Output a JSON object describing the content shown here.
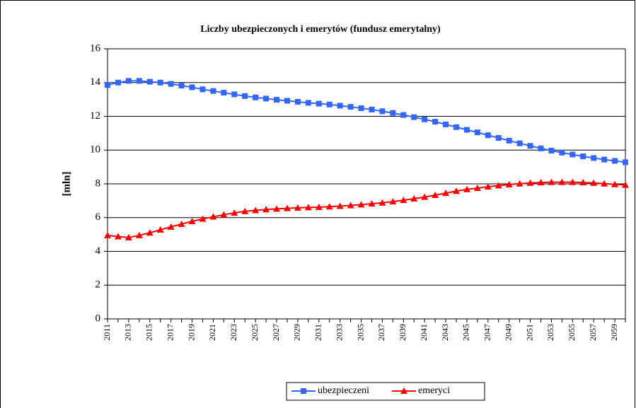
{
  "chart_data": {
    "type": "line",
    "title": "Liczby ubezpieczonych i emerytów (fundusz emerytalny)",
    "y_label": "[mln]",
    "categories": [
      "2011",
      null,
      "2013",
      null,
      "2015",
      null,
      "2017",
      null,
      "2019",
      null,
      "2021",
      null,
      "2023",
      null,
      "2025",
      null,
      "2027",
      null,
      "2029",
      null,
      "2031",
      null,
      "2033",
      null,
      "2035",
      null,
      "2037",
      null,
      "2039",
      null,
      "2041",
      null,
      "2043",
      null,
      "2045",
      null,
      "2047",
      null,
      "2049",
      null,
      "2051",
      null,
      "2053",
      null,
      "2055",
      null,
      "2057",
      null,
      "2059",
      null
    ],
    "series": [
      {
        "name": "ubezpieczeni",
        "color": "#3366ff",
        "marker": "square",
        "values": [
          13.85,
          14.0,
          14.1,
          14.1,
          14.05,
          14.0,
          13.92,
          13.82,
          13.72,
          13.6,
          13.5,
          13.4,
          13.3,
          13.2,
          13.12,
          13.05,
          12.98,
          12.92,
          12.86,
          12.8,
          12.75,
          12.7,
          12.63,
          12.56,
          12.48,
          12.4,
          12.3,
          12.2,
          12.08,
          11.95,
          11.82,
          11.68,
          11.52,
          11.36,
          11.2,
          11.05,
          10.88,
          10.72,
          10.56,
          10.4,
          10.25,
          10.1,
          9.97,
          9.85,
          9.74,
          9.63,
          9.53,
          9.44,
          9.36,
          9.28
        ]
      },
      {
        "name": "emeryci",
        "color": "#ff0000",
        "marker": "triangle",
        "values": [
          4.95,
          4.88,
          4.82,
          4.95,
          5.1,
          5.28,
          5.45,
          5.62,
          5.78,
          5.92,
          6.05,
          6.17,
          6.28,
          6.37,
          6.43,
          6.48,
          6.52,
          6.55,
          6.58,
          6.6,
          6.62,
          6.65,
          6.68,
          6.72,
          6.77,
          6.82,
          6.88,
          6.95,
          7.03,
          7.12,
          7.22,
          7.33,
          7.45,
          7.57,
          7.67,
          7.75,
          7.83,
          7.9,
          7.96,
          8.01,
          8.05,
          8.08,
          8.1,
          8.1,
          8.1,
          8.08,
          8.05,
          8.01,
          7.97,
          7.93
        ]
      }
    ],
    "ylim": [
      0,
      16
    ],
    "yticks": [
      0,
      2,
      4,
      6,
      8,
      10,
      12,
      14,
      16
    ],
    "grid": true,
    "legend": "bottom"
  }
}
